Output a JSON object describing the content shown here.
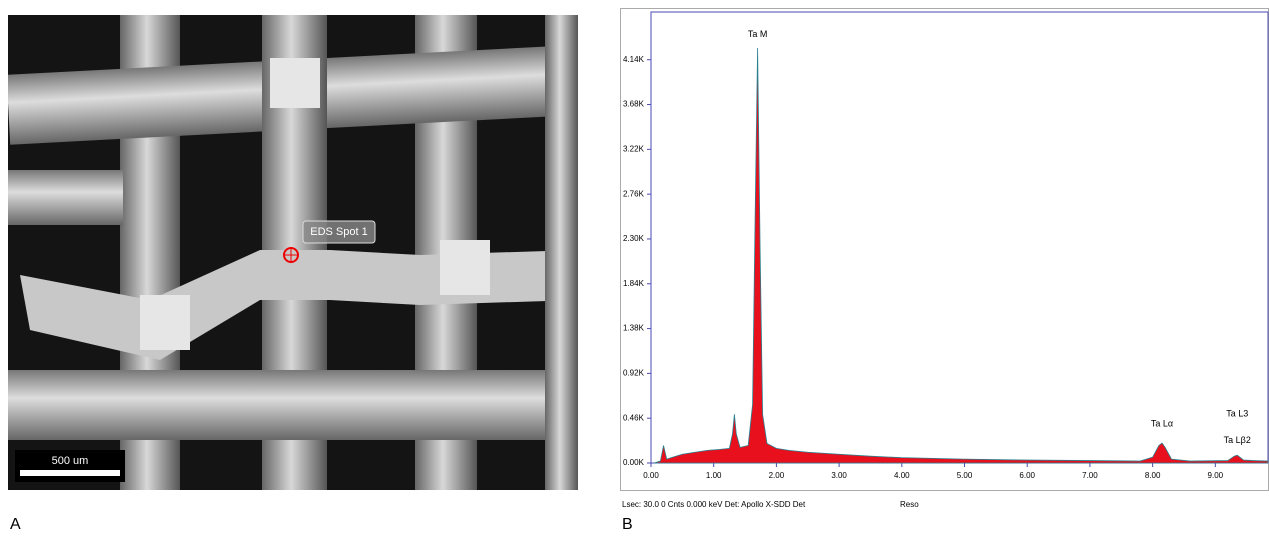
{
  "image_panel": {
    "label": "A",
    "callout": "EDS Spot 1",
    "scale_bar": "500 um"
  },
  "chart_label": "B",
  "footer": "Lsec: 30.0 0 Cnts 0.000 keV Det: Apollo X-SDD Det",
  "footer_right": "Reso",
  "chart_data": {
    "type": "area",
    "color": "#e8101c",
    "x": [
      0.05,
      0.15,
      0.2,
      0.25,
      0.35,
      0.5,
      0.7,
      0.9,
      1.1,
      1.25,
      1.3,
      1.33,
      1.36,
      1.42,
      1.55,
      1.62,
      1.66,
      1.7,
      1.74,
      1.78,
      1.85,
      2.0,
      2.2,
      2.5,
      3.0,
      3.5,
      4.0,
      5.0,
      6.0,
      7.0,
      7.8,
      8.0,
      8.1,
      8.15,
      8.2,
      8.3,
      8.6,
      9.2,
      9.3,
      9.35,
      9.45,
      9.6,
      9.84
    ],
    "values": [
      0,
      20,
      180,
      40,
      60,
      90,
      110,
      130,
      140,
      150,
      300,
      500,
      300,
      160,
      180,
      600,
      2500,
      4260,
      2200,
      500,
      200,
      150,
      130,
      110,
      90,
      70,
      55,
      40,
      30,
      25,
      20,
      60,
      180,
      205,
      160,
      40,
      20,
      25,
      70,
      80,
      30,
      25,
      20
    ],
    "xlim": [
      0,
      9.84
    ],
    "ylim": [
      0,
      4630
    ],
    "xticks": [
      {
        "value": 0,
        "label": "0.00"
      },
      {
        "value": 1,
        "label": "1.00"
      },
      {
        "value": 2,
        "label": "2.00"
      },
      {
        "value": 3,
        "label": "3.00"
      },
      {
        "value": 4,
        "label": "4.00"
      },
      {
        "value": 5,
        "label": "5.00"
      },
      {
        "value": 6,
        "label": "6.00"
      },
      {
        "value": 7,
        "label": "7.00"
      },
      {
        "value": 8,
        "label": "8.00"
      },
      {
        "value": 9,
        "label": "9.00"
      }
    ],
    "yticks": [
      {
        "value": 0,
        "label": "0.00K"
      },
      {
        "value": 460,
        "label": "0.46K"
      },
      {
        "value": 920,
        "label": "0.92K"
      },
      {
        "value": 1380,
        "label": "1.38K"
      },
      {
        "value": 1840,
        "label": "1.84K"
      },
      {
        "value": 2300,
        "label": "2.30K"
      },
      {
        "value": 2760,
        "label": "2.76K"
      },
      {
        "value": 3220,
        "label": "3.22K"
      },
      {
        "value": 3680,
        "label": "3.68K"
      },
      {
        "value": 4140,
        "label": "4.14K"
      }
    ],
    "annotations": [
      {
        "text": "Ta M",
        "x": 1.7,
        "y": 4400
      },
      {
        "text": "Ta Lα",
        "x": 8.15,
        "y": 400
      },
      {
        "text": "Ta L3",
        "x": 9.35,
        "y": 500
      },
      {
        "text": "Ta Lβ2",
        "x": 9.35,
        "y": 230
      }
    ]
  }
}
